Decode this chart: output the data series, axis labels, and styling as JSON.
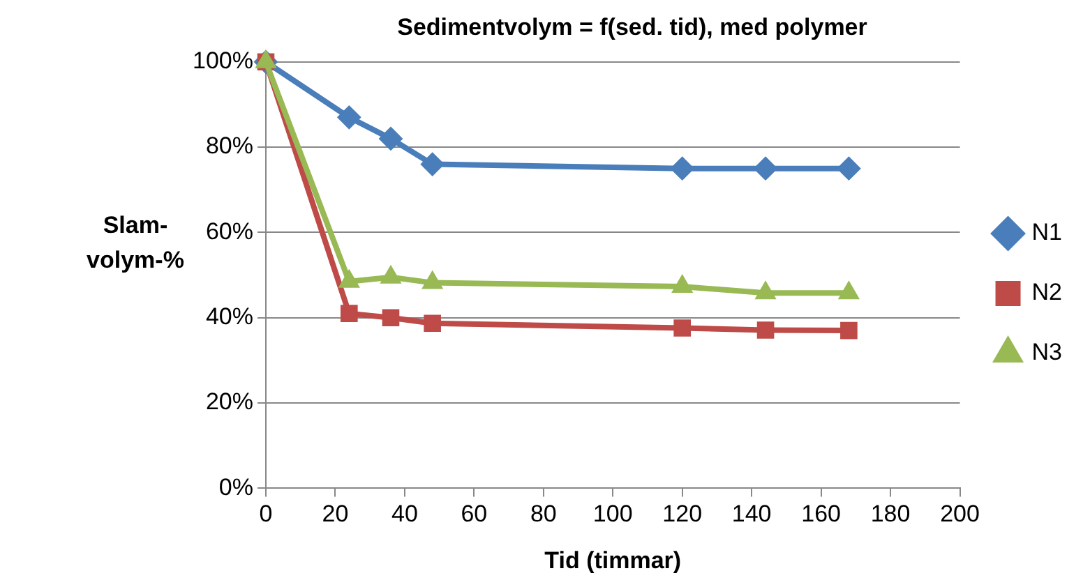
{
  "chart_data": {
    "type": "line",
    "title": "Sedimentvolym = f(sed. tid), med polymer",
    "xlabel": "Tid (timmar)",
    "ylabel": "Slam-volym-%",
    "x": [
      0,
      24,
      36,
      48,
      120,
      144,
      168
    ],
    "series": [
      {
        "name": "N1",
        "color": "#4a7ebb",
        "marker": "diamond",
        "values": [
          100,
          87,
          82,
          76,
          75,
          75,
          75
        ]
      },
      {
        "name": "N2",
        "color": "#be4b48",
        "marker": "square",
        "values": [
          100,
          41,
          40,
          38.7,
          37.6,
          37.1,
          37
        ]
      },
      {
        "name": "N3",
        "color": "#98b954",
        "marker": "triangle",
        "values": [
          100,
          48.5,
          49.5,
          48.2,
          47.3,
          45.8,
          45.8
        ]
      }
    ],
    "xlim": [
      0,
      200
    ],
    "xticks": [
      0,
      20,
      40,
      60,
      80,
      100,
      120,
      140,
      160,
      180,
      200
    ],
    "ylim": [
      0,
      100
    ],
    "yticks": [
      {
        "value": 0,
        "label": "0%"
      },
      {
        "value": 20,
        "label": "20%"
      },
      {
        "value": 40,
        "label": "40%"
      },
      {
        "value": 60,
        "label": "60%"
      },
      {
        "value": 80,
        "label": "80%"
      },
      {
        "value": 100,
        "label": "100%"
      }
    ],
    "grid": "y",
    "legend": "right",
    "line_style": "solid"
  }
}
